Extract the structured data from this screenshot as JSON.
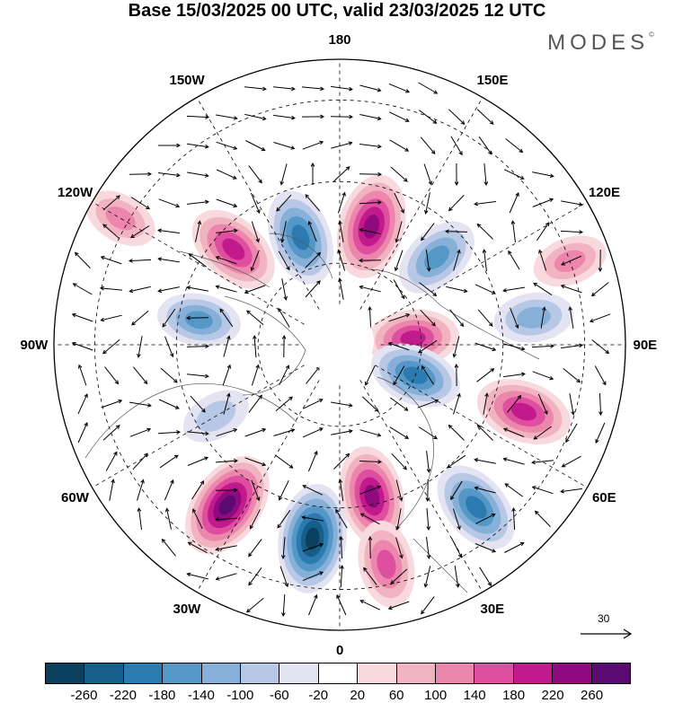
{
  "title": "Base 15/03/2025 00 UTC, valid 23/03/2025 12 UTC",
  "brand": "MODES",
  "brand_mark": "©",
  "longitude_labels": [
    {
      "lon": 180,
      "text": "180"
    },
    {
      "lon": 150,
      "text": "150E"
    },
    {
      "lon": 120,
      "text": "120E"
    },
    {
      "lon": 90,
      "text": "90E"
    },
    {
      "lon": 60,
      "text": "60E"
    },
    {
      "lon": 30,
      "text": "30E"
    },
    {
      "lon": 0,
      "text": "0"
    },
    {
      "lon": -30,
      "text": "30W"
    },
    {
      "lon": -60,
      "text": "60W"
    },
    {
      "lon": -90,
      "text": "90W"
    },
    {
      "lon": -120,
      "text": "120W"
    },
    {
      "lon": -150,
      "text": "150W"
    }
  ],
  "reference_vector": {
    "value": "30"
  },
  "colorbar": {
    "ticks": [
      "-260",
      "-220",
      "-180",
      "-140",
      "-100",
      "-60",
      "-20",
      "20",
      "60",
      "100",
      "140",
      "180",
      "220",
      "260"
    ],
    "colors": [
      "#0b3f5e",
      "#155e8a",
      "#2b7bb0",
      "#5597c6",
      "#86b0d8",
      "#b7c8e6",
      "#e3e3f1",
      "#ffffff",
      "#f8d9dd",
      "#f2b3c0",
      "#ec86ac",
      "#df4f9f",
      "#c21a8c",
      "#8f0a7e",
      "#5b0a72"
    ]
  },
  "anomaly_centers": [
    {
      "lat": 62,
      "lon": -160,
      "value": -200
    },
    {
      "lat": 60,
      "lon": 165,
      "value": 240
    },
    {
      "lat": 58,
      "lon": 132,
      "value": -160
    },
    {
      "lat": 55,
      "lon": -132,
      "value": 200
    },
    {
      "lat": 55,
      "lon": -100,
      "value": -140
    },
    {
      "lat": 72,
      "lon": 95,
      "value": 180
    },
    {
      "lat": 70,
      "lon": 68,
      "value": -180
    },
    {
      "lat": 42,
      "lon": 98,
      "value": -120
    },
    {
      "lat": 42,
      "lon": 70,
      "value": 200
    },
    {
      "lat": 38,
      "lon": 40,
      "value": -200
    },
    {
      "lat": 42,
      "lon": -35,
      "value": 260
    },
    {
      "lat": 42,
      "lon": -8,
      "value": -260
    },
    {
      "lat": 52,
      "lon": 12,
      "value": 220
    },
    {
      "lat": 35,
      "lon": 12,
      "value": 160
    },
    {
      "lat": 55,
      "lon": -60,
      "value": -80
    },
    {
      "lat": 28,
      "lon": -120,
      "value": 100
    },
    {
      "lat": 30,
      "lon": 110,
      "value": 100
    }
  ]
}
